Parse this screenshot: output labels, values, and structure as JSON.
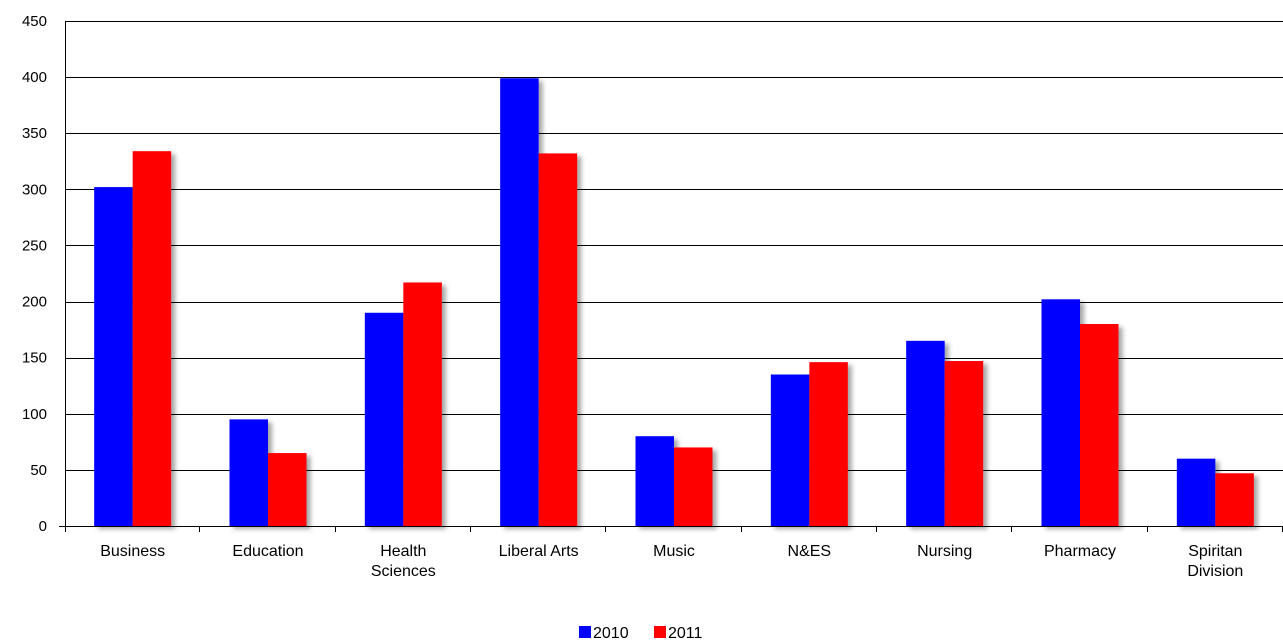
{
  "chart_data": {
    "type": "bar",
    "title": "",
    "xlabel": "",
    "ylabel": "",
    "categories": [
      [
        "Business"
      ],
      [
        "Education"
      ],
      [
        "Health",
        "Sciences"
      ],
      [
        "Liberal Arts"
      ],
      [
        "Music"
      ],
      [
        "N&ES"
      ],
      [
        "Nursing"
      ],
      [
        "Pharmacy"
      ],
      [
        "Spiritan",
        "Division"
      ]
    ],
    "series": [
      {
        "name": "2010",
        "color": "#0000ff",
        "values": [
          302,
          95,
          190,
          399,
          80,
          135,
          165,
          202,
          60
        ]
      },
      {
        "name": "2011",
        "color": "#ff0000",
        "values": [
          334,
          65,
          217,
          332,
          70,
          146,
          147,
          180,
          47
        ]
      }
    ],
    "ylim": [
      0,
      450
    ],
    "yticks": [
      0,
      50,
      100,
      150,
      200,
      250,
      300,
      350,
      400,
      450
    ],
    "grid": true,
    "legend_position": "bottom-center"
  }
}
